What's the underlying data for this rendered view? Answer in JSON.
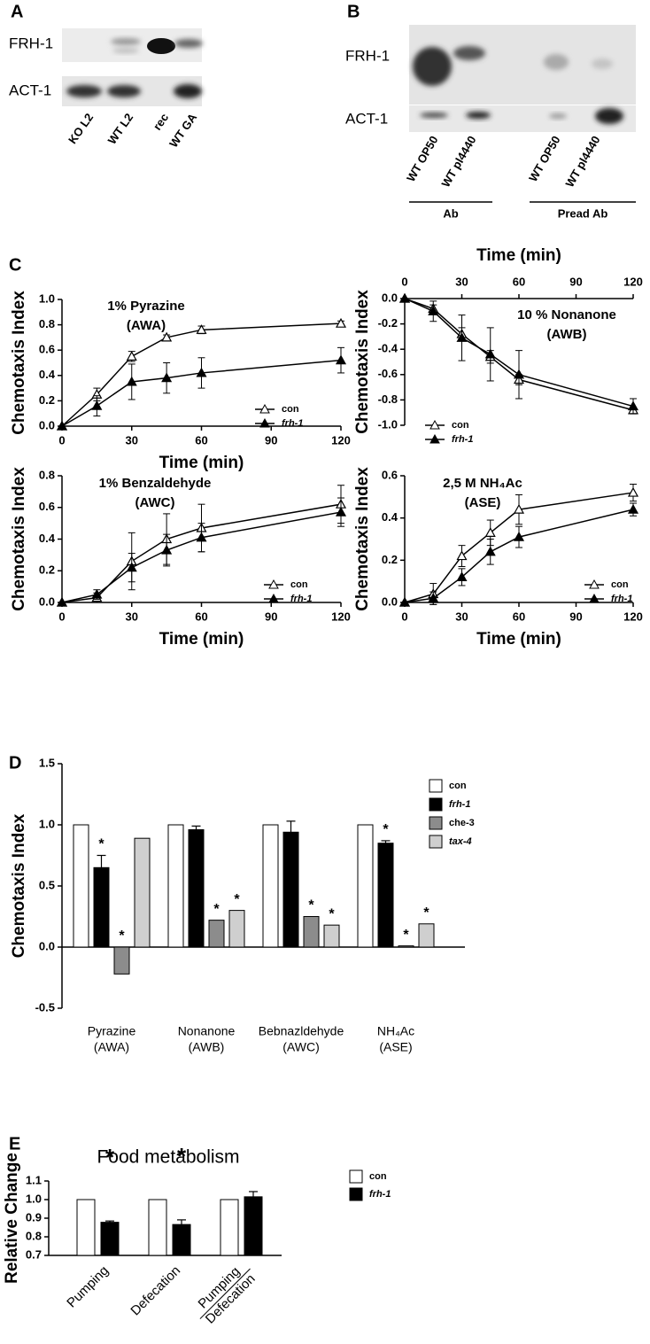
{
  "panel_labels": [
    "A",
    "B",
    "C",
    "D",
    "E"
  ],
  "blots": [
    {
      "rows": [
        "FRH-1",
        "ACT-1"
      ],
      "lanes": [
        "KO L2",
        "WT L2",
        "rec",
        "WT GA"
      ]
    },
    {
      "rows": [
        "FRH-1",
        "ACT-1"
      ],
      "lanes": [
        "WT OP50",
        "WT pl4440",
        "WT OP50",
        "WT pl4440"
      ],
      "groups": [
        "Ab",
        "Pread Ab"
      ]
    }
  ],
  "chart_data": [
    {
      "type": "line",
      "annotation": [
        "1% Pyrazine",
        "(AWA)"
      ],
      "xlabel": "Time (min)",
      "ylabel": "Chemotaxis Index",
      "x": [
        0,
        15,
        30,
        45,
        60,
        120
      ],
      "xlim": [
        0,
        120
      ],
      "xticks": [
        0,
        30,
        60,
        90,
        120
      ],
      "ylim": [
        0,
        1
      ],
      "yticks": [
        {
          "value": 0,
          "label": "0.0"
        },
        0.2,
        0.4,
        0.6,
        0.8,
        {
          "value": 1,
          "label": "1.0"
        }
      ],
      "series": [
        {
          "name": "con",
          "color": "#000000",
          "marker": "open",
          "values": [
            0,
            0.25,
            0.55,
            0.7,
            0.76,
            0.81
          ],
          "errors": [
            0,
            0.05,
            0.04,
            0.02,
            0.03,
            0.02
          ]
        },
        {
          "name": "frh-1",
          "color": "#000000",
          "marker": "filled",
          "values": [
            0,
            0.16,
            0.35,
            0.38,
            0.42,
            0.52
          ],
          "errors": [
            0,
            0.08,
            0.14,
            0.12,
            0.12,
            0.1
          ]
        }
      ]
    },
    {
      "type": "line",
      "annotation": [
        "10 % Nonanone",
        "(AWB)"
      ],
      "xlabel": "Time (min)",
      "ylabel": "Chemotaxis Index",
      "xaxis": "top",
      "x": [
        0,
        15,
        30,
        45,
        60,
        120
      ],
      "xlim": [
        0,
        120
      ],
      "xticks": [
        0,
        30,
        60,
        90,
        120
      ],
      "ylim": [
        -1,
        0
      ],
      "yticks": [
        {
          "value": -1,
          "label": "-1.0"
        },
        -0.8,
        -0.6,
        -0.4,
        -0.2,
        {
          "value": 0,
          "label": "0.0"
        }
      ],
      "series": [
        {
          "name": "con",
          "color": "#000000",
          "marker": "open",
          "values": [
            0,
            -0.08,
            -0.28,
            -0.46,
            -0.64,
            -0.88
          ],
          "errors": [
            0,
            0.03,
            0.05,
            0.05,
            0.04,
            0.02
          ]
        },
        {
          "name": "frh-1",
          "color": "#000000",
          "marker": "filled",
          "values": [
            0,
            -0.1,
            -0.31,
            -0.44,
            -0.6,
            -0.85
          ],
          "errors": [
            0,
            0.08,
            0.18,
            0.21,
            0.19,
            0.06
          ]
        }
      ]
    },
    {
      "type": "line",
      "annotation": [
        "1% Benzaldehyde",
        "(AWC)"
      ],
      "xlabel": "Time (min)",
      "ylabel": "Chemotaxis Index",
      "x": [
        0,
        15,
        30,
        45,
        60,
        120
      ],
      "xlim": [
        0,
        120
      ],
      "xticks": [
        0,
        30,
        60,
        90,
        120
      ],
      "ylim": [
        0,
        0.8
      ],
      "yticks": [
        {
          "value": 0,
          "label": "0.0"
        },
        0.2,
        0.4,
        0.6,
        0.8
      ],
      "series": [
        {
          "name": "con",
          "color": "#000000",
          "marker": "open",
          "values": [
            0,
            0.03,
            0.26,
            0.4,
            0.47,
            0.62
          ],
          "errors": [
            0,
            0.03,
            0.18,
            0.16,
            0.15,
            0.12
          ]
        },
        {
          "name": "frh-1",
          "color": "#000000",
          "marker": "filled",
          "values": [
            0,
            0.05,
            0.22,
            0.33,
            0.41,
            0.57
          ],
          "errors": [
            0,
            0.03,
            0.09,
            0.1,
            0.09,
            0.09
          ]
        }
      ]
    },
    {
      "type": "line",
      "annotation": [
        "2,5 M NH₄Ac",
        "(ASE)"
      ],
      "xlabel": "Time (min)",
      "ylabel": "Chemotaxis Index",
      "x": [
        0,
        15,
        30,
        45,
        60,
        120
      ],
      "xlim": [
        0,
        120
      ],
      "xticks": [
        0,
        30,
        60,
        90,
        120
      ],
      "ylim": [
        0,
        0.6
      ],
      "yticks": [
        {
          "value": 0,
          "label": "0.0"
        },
        0.2,
        0.4,
        0.6
      ],
      "series": [
        {
          "name": "con",
          "color": "#000000",
          "marker": "open",
          "values": [
            0,
            0.04,
            0.22,
            0.33,
            0.44,
            0.52
          ],
          "errors": [
            0,
            0.05,
            0.05,
            0.06,
            0.07,
            0.04
          ]
        },
        {
          "name": "frh-1",
          "color": "#000000",
          "marker": "filled",
          "values": [
            0,
            0.02,
            0.12,
            0.24,
            0.31,
            0.44
          ],
          "errors": [
            0,
            0.03,
            0.04,
            0.06,
            0.05,
            0.03
          ]
        }
      ]
    },
    {
      "type": "bar",
      "ylabel": "Chemotaxis Index",
      "categories": [
        [
          "Pyrazine",
          "(AWA)"
        ],
        [
          "Nonanone",
          "(AWB)"
        ],
        [
          "Bebnazldehyde",
          "(AWC)"
        ],
        [
          "NH₄Ac",
          "(ASE)"
        ]
      ],
      "ylim": [
        -0.5,
        1.5
      ],
      "yticks": [
        -0.5,
        {
          "value": 0,
          "label": "0.0"
        },
        0.5,
        {
          "value": 1,
          "label": "1.0"
        },
        1.5
      ],
      "series": [
        {
          "name": "con",
          "color": "#ffffff",
          "values": [
            1,
            1,
            1,
            1
          ]
        },
        {
          "name": "frh-1",
          "color": "#000000",
          "values": [
            0.65,
            0.96,
            0.94,
            0.85
          ],
          "errors": [
            0.1,
            0.03,
            0.09,
            0.02
          ],
          "sig": [
            "*",
            null,
            null,
            "*"
          ]
        },
        {
          "name": "che-3",
          "color": "#8c8c8c",
          "values": [
            -0.22,
            0.22,
            0.25,
            0.01
          ],
          "sig": [
            "*",
            "*",
            "*",
            "*"
          ]
        },
        {
          "name": "tax-4",
          "color": "#cfcfcf",
          "values": [
            0.89,
            0.3,
            0.18,
            0.19
          ],
          "sig": [
            null,
            "*",
            "*",
            "*"
          ]
        }
      ]
    },
    {
      "type": "bar",
      "title": "Food metabolism",
      "ylabel": "Relative Change",
      "categories": [
        [
          "Pumping"
        ],
        [
          "Defecation"
        ],
        [
          "Pumping",
          "Defecation"
        ]
      ],
      "ylim": [
        0.7,
        1.1
      ],
      "yticks": [
        0.7,
        0.8,
        0.9,
        {
          "value": 1,
          "label": "1.0"
        },
        1.1
      ],
      "series": [
        {
          "name": "con",
          "color": "#ffffff",
          "values": [
            1,
            1,
            1
          ]
        },
        {
          "name": "frh-1",
          "color": "#000000",
          "values": [
            0.878,
            0.866,
            1.015
          ],
          "errors": [
            0.007,
            0.025,
            0.028
          ],
          "sig": [
            "*",
            "*",
            null
          ]
        }
      ]
    }
  ]
}
